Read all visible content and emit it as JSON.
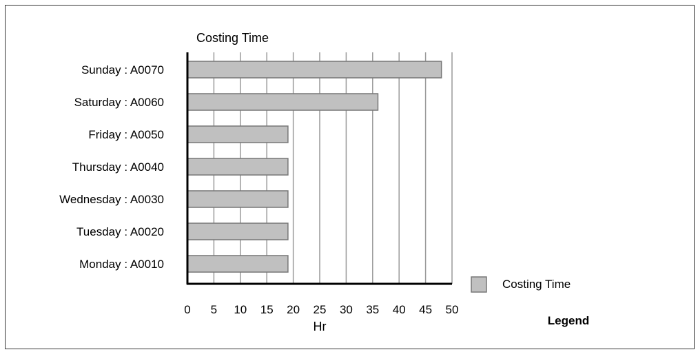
{
  "chart_data": {
    "type": "bar",
    "orientation": "horizontal",
    "title": "Costing Time",
    "xlabel": "Hr",
    "ylabel": "",
    "categories": [
      "Sunday : A0070",
      "Saturday : A0060",
      "Friday : A0050",
      "Thursday : A0040",
      "Wednesday : A0030",
      "Tuesday : A0020",
      "Monday : A0010"
    ],
    "series": [
      {
        "name": "Costing Time",
        "values": [
          48,
          36,
          19,
          19,
          19,
          19,
          19
        ]
      }
    ],
    "xlim": [
      0,
      50
    ],
    "xticks": [
      0,
      5,
      10,
      15,
      20,
      25,
      30,
      35,
      40,
      45,
      50
    ],
    "grid": true,
    "legend": {
      "title": "Legend",
      "position": "right"
    },
    "colors": {
      "bar_fill": "#c0c0c0",
      "bar_stroke": "#777777",
      "grid": "#999999",
      "axis": "#000000"
    }
  }
}
